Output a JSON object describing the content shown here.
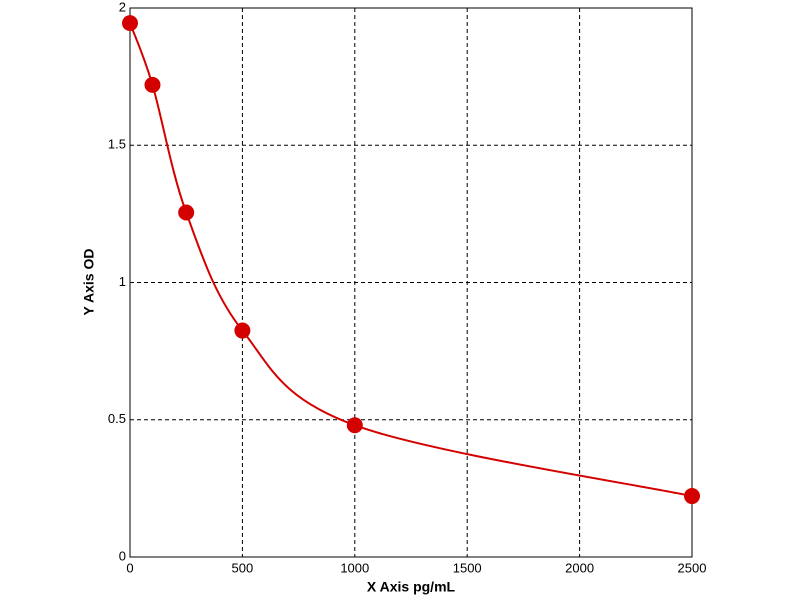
{
  "chart_data": {
    "type": "scatter",
    "x_label": "X Axis pg/mL",
    "y_label": "Y Axis OD",
    "x": [
      0,
      100,
      250,
      500,
      1000,
      2500
    ],
    "values": [
      1.945,
      1.72,
      1.255,
      0.825,
      0.48,
      0.222
    ],
    "color": "#d40000",
    "xlim": [
      0,
      2500
    ],
    "xticks": [
      0,
      500,
      1000,
      1500,
      2000,
      2500
    ],
    "ylim": [
      0,
      2
    ],
    "yticks": [
      0,
      0.5,
      1,
      1.5,
      2
    ],
    "grid": true
  }
}
